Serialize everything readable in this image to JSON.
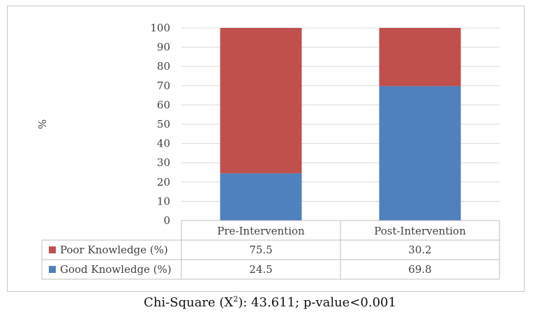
{
  "chart_data": {
    "type": "bar",
    "stacked": true,
    "categories": [
      "Pre-Intervention",
      "Post-Intervention"
    ],
    "series": [
      {
        "name": "Good Knowledge (%)",
        "values": [
          24.5,
          69.8
        ],
        "color": "#4f81bd"
      },
      {
        "name": "Poor Knowledge (%)",
        "values": [
          75.5,
          30.2
        ],
        "color": "#c0504d"
      }
    ],
    "table_rows": [
      {
        "label": "Poor Knowledge (%)",
        "values": [
          "75.5",
          "30.2"
        ],
        "color": "#c0504d"
      },
      {
        "label": "Good Knowledge (%)",
        "values": [
          "24.5",
          "69.8"
        ],
        "color": "#4f81bd"
      }
    ],
    "ylabel": "%",
    "ylim": [
      0,
      100
    ],
    "yticks": [
      0,
      10,
      20,
      30,
      40,
      50,
      60,
      70,
      80,
      90,
      100
    ],
    "grid": true,
    "legend": "data-table"
  },
  "caption": {
    "prefix": "Chi-Square (X",
    "superscript": "2",
    "suffix": "): 43.611; p-value<0.001"
  }
}
